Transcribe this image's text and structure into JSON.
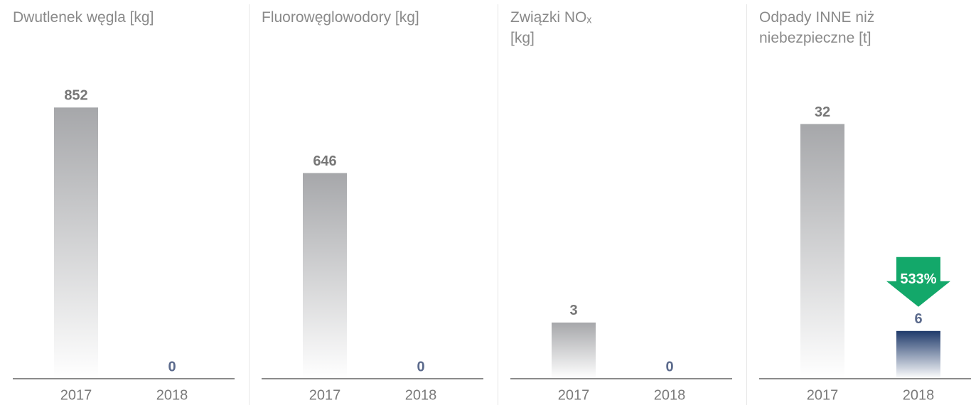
{
  "chart_data": [
    {
      "type": "bar",
      "title": "Dwutlenek węgla [kg]",
      "categories": [
        "2017",
        "2018"
      ],
      "values": [
        852,
        0
      ],
      "colors": [
        "#a6a7aa",
        "#1f3a6b"
      ],
      "ylim": [
        0,
        1000
      ]
    },
    {
      "type": "bar",
      "title": "Fluorowęglowodory [kg]",
      "categories": [
        "2017",
        "2018"
      ],
      "values": [
        646,
        0
      ],
      "colors": [
        "#a6a7aa",
        "#1f3a6b"
      ],
      "ylim": [
        0,
        1000
      ]
    },
    {
      "type": "bar",
      "title": "Związki NOₓ [kg]",
      "categories": [
        "2017",
        "2018"
      ],
      "values": [
        3,
        0
      ],
      "colors": [
        "#a6a7aa",
        "#1f3a6b"
      ],
      "ylim": [
        0,
        17
      ]
    },
    {
      "type": "bar",
      "title": "Odpady INNE niż niebezpieczne [t]",
      "categories": [
        "2017",
        "2018"
      ],
      "values": [
        32,
        6
      ],
      "colors": [
        "#a6a7aa",
        "#1f3a6b"
      ],
      "ylim": [
        0,
        40
      ],
      "annotation": "533%",
      "annotation_color": "#13a86a"
    }
  ]
}
